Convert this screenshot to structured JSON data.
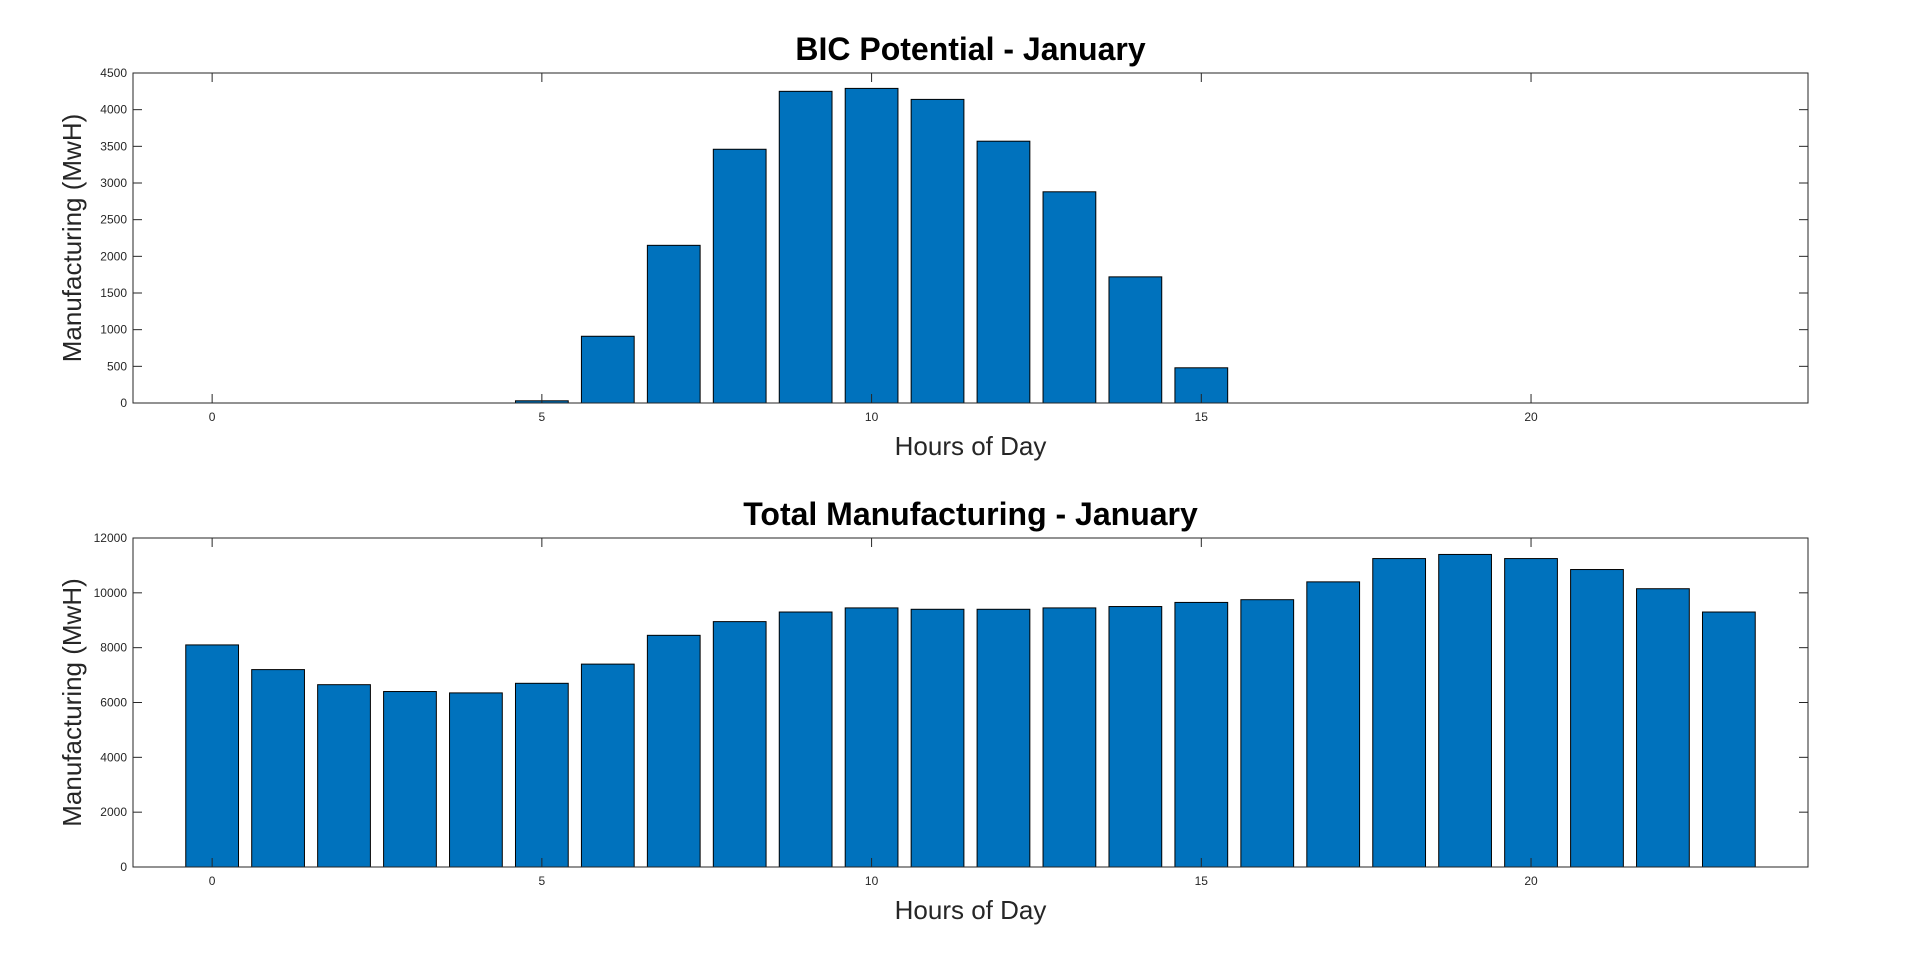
{
  "chart_data": [
    {
      "type": "bar",
      "title": "BIC Potential - January",
      "xlabel": "Hours of Day",
      "ylabel": "Manufacturing (MwH)",
      "xlim": [
        -1.2,
        24.2
      ],
      "ylim": [
        0,
        4500
      ],
      "xticks": [
        0,
        5,
        10,
        15,
        20
      ],
      "yticks": [
        0,
        500,
        1000,
        1500,
        2000,
        2500,
        3000,
        3500,
        4000,
        4500
      ],
      "x": [
        0,
        1,
        2,
        3,
        4,
        5,
        6,
        7,
        8,
        9,
        10,
        11,
        12,
        13,
        14,
        15,
        16,
        17,
        18,
        19,
        20,
        21,
        22,
        23
      ],
      "values": [
        0,
        0,
        0,
        0,
        0,
        30,
        910,
        2150,
        3460,
        4250,
        4290,
        4140,
        3570,
        2880,
        1720,
        480,
        0,
        0,
        0,
        0,
        0,
        0,
        0,
        0
      ],
      "bar_color": "#0072BD",
      "grid": false,
      "legend": "none"
    },
    {
      "type": "bar",
      "title": "Total Manufacturing - January",
      "xlabel": "Hours of Day",
      "ylabel": "Manufacturing (MwH)",
      "xlim": [
        -1.2,
        24.2
      ],
      "ylim": [
        0,
        12000
      ],
      "xticks": [
        0,
        5,
        10,
        15,
        20
      ],
      "yticks": [
        0,
        2000,
        4000,
        6000,
        8000,
        10000,
        12000
      ],
      "x": [
        0,
        1,
        2,
        3,
        4,
        5,
        6,
        7,
        8,
        9,
        10,
        11,
        12,
        13,
        14,
        15,
        16,
        17,
        18,
        19,
        20,
        21,
        22,
        23
      ],
      "values": [
        8100,
        7200,
        6650,
        6400,
        6350,
        6700,
        7400,
        8450,
        8950,
        9300,
        9450,
        9400,
        9400,
        9450,
        9500,
        9650,
        9750,
        10400,
        11250,
        11400,
        11250,
        10850,
        10150,
        9300
      ],
      "bar_color": "#0072BD",
      "grid": false,
      "legend": "none"
    }
  ]
}
